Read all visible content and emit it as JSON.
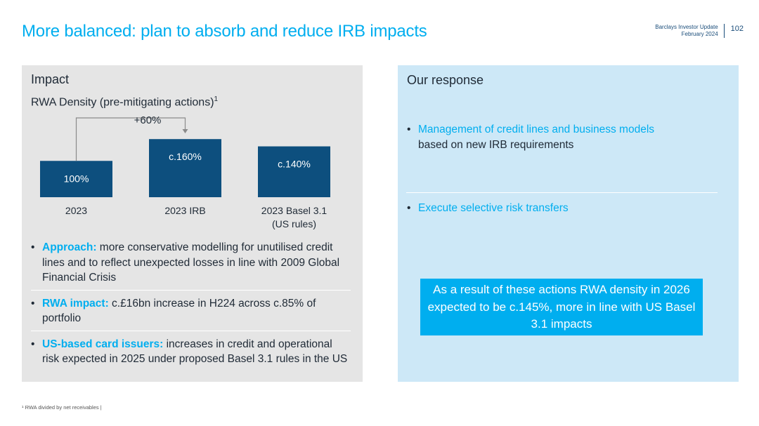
{
  "header": {
    "title": "More balanced: plan to absorb and reduce IRB impacts",
    "company": "Barclays Investor Update",
    "date": "February 2024",
    "page_number": "102"
  },
  "left_panel": {
    "heading": "Impact",
    "chart_title": "RWA Density (pre-mitigating actions)",
    "chart_title_footnote_mark": "1",
    "bullets": [
      {
        "keyword": "Approach:",
        "text": " more conservative modelling for unutilised credit lines and to reflect unexpected losses in line with 2009 Global Financial Crisis"
      },
      {
        "keyword": "RWA impact:",
        "text": " c.£16bn increase in H224 across c.85% of portfolio"
      },
      {
        "keyword": "US-based card issuers:",
        "text": " increases in credit and operational risk expected in 2025 under proposed Basel 3.1 rules in the US"
      }
    ]
  },
  "right_panel": {
    "heading": "Our response",
    "bullet1_highlight": "Management of credit lines and business models",
    "bullet1_rest": " based on new IRB requirements",
    "bullet2": "Execute selective risk transfers",
    "callout": "As a result of these actions RWA density in 2026 expected to be c.145%, more in line with US Basel 3.1 impacts"
  },
  "footnote": "¹ RWA divided by net receivables |",
  "chart_data": {
    "type": "bar",
    "title": "RWA Density (pre-mitigating actions)",
    "categories": [
      [
        "2023"
      ],
      [
        "2023 IRB"
      ],
      [
        "2023 Basel 3.1",
        "(US rules)"
      ]
    ],
    "values": [
      100,
      160,
      140
    ],
    "value_labels": [
      "100%",
      "c.160%",
      "c.140%"
    ],
    "annotation": {
      "text": "+60%",
      "from_index": 0,
      "to_index": 1
    },
    "bar_color": "#0d4f7e",
    "label_color": "#ffffff",
    "grid": false,
    "legend": "none"
  },
  "colors": {
    "accent": "#00aeef",
    "navy": "#0d4f7e",
    "left_panel_bg": "#e5e5e5",
    "right_panel_bg": "#cde8f7"
  }
}
